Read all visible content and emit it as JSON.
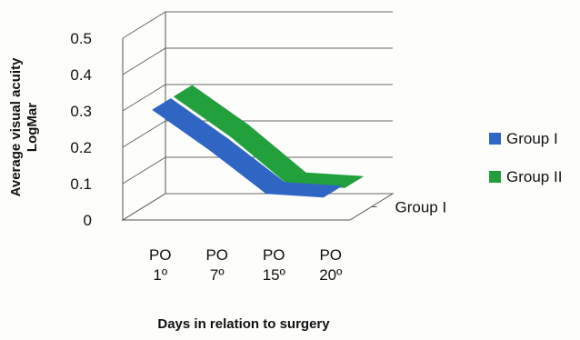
{
  "chart_data": {
    "type": "line",
    "style": "3d",
    "categories": [
      {
        "line1": "PO",
        "line2": "1º"
      },
      {
        "line1": "PO",
        "line2": "7º"
      },
      {
        "line1": "PO",
        "line2": "15º"
      },
      {
        "line1": "PO",
        "line2": "20º"
      }
    ],
    "series": [
      {
        "name": "Group I",
        "color": "#2f66c4",
        "values": [
          0.3,
          0.19,
          0.07,
          0.06
        ]
      },
      {
        "name": "Group II",
        "color": "#22a03c",
        "values": [
          0.3,
          0.19,
          0.06,
          0.05
        ]
      }
    ],
    "yticks": [
      "0",
      "0.1",
      "0.2",
      "0.3",
      "0.4",
      "0.5"
    ],
    "ylim": [
      0,
      0.5
    ],
    "ylabel_line1": "Average visual acuity",
    "ylabel_line2": "LogMar",
    "xlabel": "Days  in relation to surgery",
    "depth_label": "Group I",
    "grid": true,
    "legend_position": "right"
  }
}
